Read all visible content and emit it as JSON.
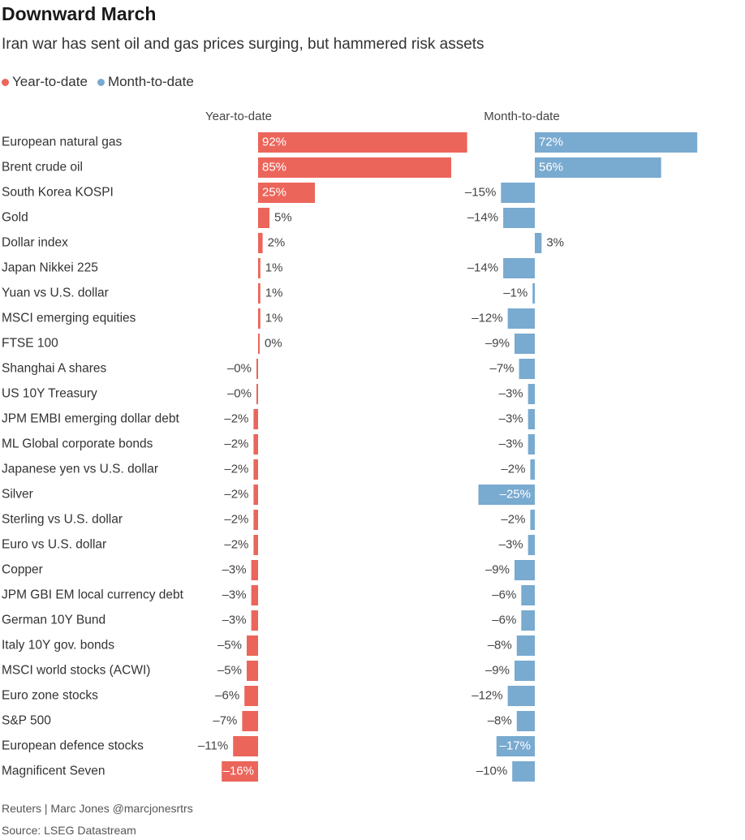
{
  "header": {
    "title": "Downward March",
    "subtitle": "Iran war has sent oil and gas prices surging, but hammered risk assets"
  },
  "legend": [
    {
      "label": "Year-to-date",
      "color": "#ec655a"
    },
    {
      "label": "Month-to-date",
      "color": "#79aad0"
    }
  ],
  "footer": {
    "credit": "Reuters | Marc Jones @marcjonesrtrs",
    "source": "Source: LSEG Datastream"
  },
  "chart_data": {
    "type": "bar",
    "orientation": "horizontal",
    "unit": "%",
    "categories": [
      "European natural gas",
      "Brent crude oil",
      "South Korea KOSPI",
      "Gold",
      "Dollar index",
      "Japan Nikkei 225",
      "Yuan vs U.S. dollar",
      "MSCI emerging equities",
      "FTSE 100",
      "Shanghai A shares",
      "US 10Y Treasury",
      "JPM EMBI emerging dollar debt",
      "ML Global corporate bonds",
      "Japanese yen vs U.S. dollar",
      "Silver",
      "Sterling vs U.S. dollar",
      "Euro vs U.S. dollar",
      "Copper",
      "JPM GBI EM local currency debt",
      "German 10Y Bund",
      "Italy 10Y gov. bonds",
      "MSCI world stocks (ACWI)",
      "Euro zone stocks",
      "S&P 500",
      "European defence stocks",
      "Magnificent Seven"
    ],
    "series": [
      {
        "name": "Year-to-date",
        "color": "#ec655a",
        "values": [
          92,
          85,
          25,
          5,
          2,
          1,
          1,
          1,
          0.3,
          -0.3,
          -0.4,
          -2,
          -2,
          -2,
          -2,
          -2,
          -2,
          -3,
          -3,
          -3,
          -5,
          -5,
          -6,
          -7,
          -11,
          -16
        ],
        "labels": [
          "92%",
          "85%",
          "25%",
          "5%",
          "2%",
          "1%",
          "1%",
          "1%",
          "0%",
          "–0%",
          "–0%",
          "–2%",
          "–2%",
          "–2%",
          "–2%",
          "–2%",
          "–2%",
          "–3%",
          "–3%",
          "–3%",
          "–5%",
          "–5%",
          "–6%",
          "–7%",
          "–11%",
          "–16%"
        ]
      },
      {
        "name": "Month-to-date",
        "color": "#79aad0",
        "values": [
          72,
          56,
          -15,
          -14,
          3,
          -14,
          -1,
          -12,
          -9,
          -7,
          -3,
          -3,
          -3,
          -2,
          -25,
          -2,
          -3,
          -9,
          -6,
          -6,
          -8,
          -9,
          -12,
          -8,
          -17,
          -10
        ],
        "labels": [
          "72%",
          "56%",
          "–15%",
          "–14%",
          "3%",
          "–14%",
          "–1%",
          "–12%",
          "–9%",
          "–7%",
          "–3%",
          "–3%",
          "–3%",
          "–2%",
          "–25%",
          "–2%",
          "–3%",
          "–9%",
          "–6%",
          "–6%",
          "–8%",
          "–9%",
          "–12%",
          "–8%",
          "–17%",
          "–10%"
        ]
      }
    ]
  }
}
